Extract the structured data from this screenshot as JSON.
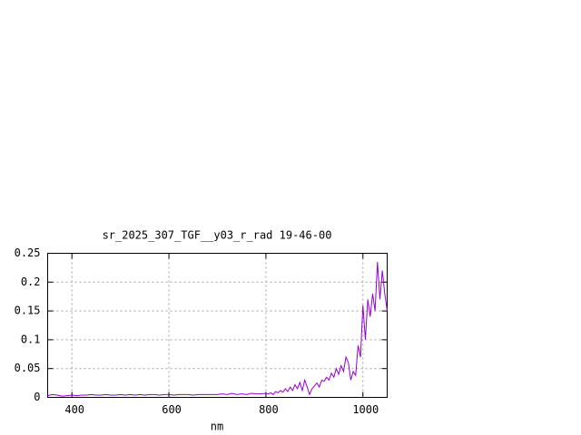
{
  "chart_data": {
    "type": "line",
    "title": "sr_2025_307_TGF__y03_r_rad 19-46-00",
    "x_label": "nm",
    "x": [
      350,
      360,
      370,
      380,
      390,
      400,
      410,
      420,
      430,
      440,
      450,
      460,
      470,
      480,
      490,
      500,
      510,
      520,
      530,
      540,
      550,
      560,
      570,
      580,
      590,
      600,
      610,
      620,
      630,
      640,
      650,
      660,
      670,
      680,
      690,
      700,
      710,
      720,
      730,
      740,
      750,
      760,
      770,
      780,
      790,
      800,
      805,
      810,
      815,
      820,
      825,
      830,
      835,
      840,
      845,
      850,
      855,
      860,
      865,
      870,
      875,
      880,
      885,
      890,
      895,
      900,
      905,
      910,
      915,
      920,
      925,
      930,
      935,
      940,
      945,
      950,
      955,
      960,
      965,
      970,
      975,
      980,
      985,
      990,
      995,
      1000,
      1005,
      1010,
      1015,
      1020,
      1025,
      1030,
      1035,
      1040,
      1045,
      1050
    ],
    "series": [
      {
        "color": "#9400d3",
        "values": [
          0.003,
          0.005,
          0.004,
          0.002,
          0.003,
          0.004,
          0.003,
          0.004,
          0.004,
          0.005,
          0.004,
          0.004,
          0.005,
          0.004,
          0.004,
          0.005,
          0.004,
          0.005,
          0.004,
          0.005,
          0.004,
          0.005,
          0.005,
          0.004,
          0.005,
          0.005,
          0.004,
          0.005,
          0.005,
          0.005,
          0.004,
          0.005,
          0.005,
          0.005,
          0.005,
          0.005,
          0.006,
          0.005,
          0.007,
          0.005,
          0.006,
          0.005,
          0.007,
          0.006,
          0.006,
          0.007,
          0.006,
          0.008,
          0.005,
          0.01,
          0.008,
          0.012,
          0.009,
          0.015,
          0.01,
          0.018,
          0.012,
          0.022,
          0.015,
          0.026,
          0.012,
          0.03,
          0.018,
          0.005,
          0.015,
          0.02,
          0.025,
          0.018,
          0.03,
          0.028,
          0.035,
          0.03,
          0.042,
          0.035,
          0.05,
          0.04,
          0.055,
          0.045,
          0.07,
          0.06,
          0.03,
          0.045,
          0.038,
          0.09,
          0.07,
          0.16,
          0.1,
          0.17,
          0.14,
          0.18,
          0.15,
          0.235,
          0.17,
          0.22,
          0.18,
          0.15
        ]
      }
    ],
    "xlim": [
      350,
      1050
    ],
    "ylim": [
      0,
      0.25
    ],
    "xticks": [
      400,
      600,
      800,
      1000
    ],
    "yticks": [
      0,
      0.05,
      0.1,
      0.15,
      0.2,
      0.25
    ],
    "grid": true
  }
}
